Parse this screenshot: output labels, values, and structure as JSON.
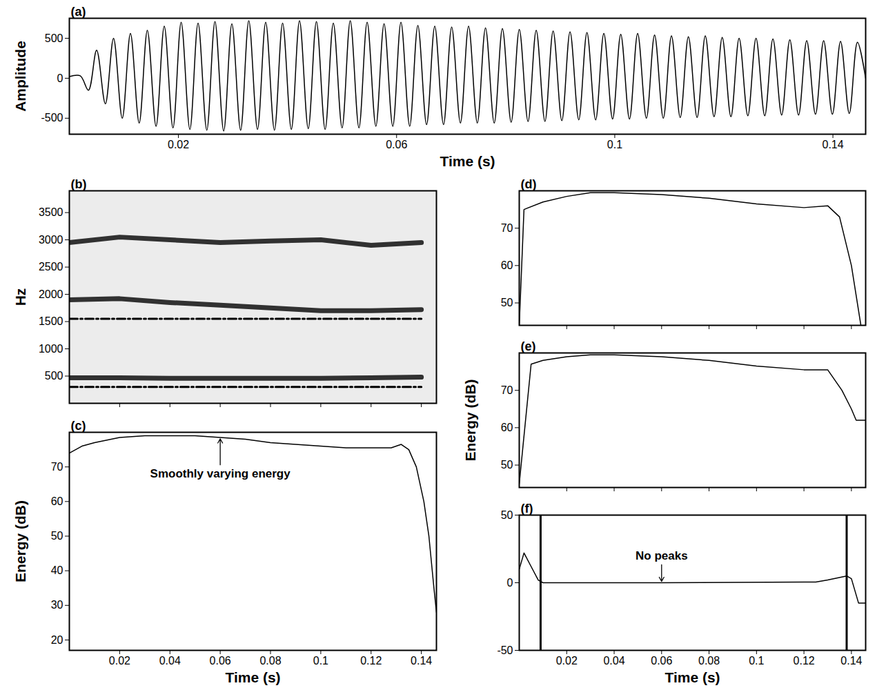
{
  "chart_data": [
    {
      "type": "line",
      "title": "(a)",
      "x_label": "Time (s)",
      "y_label": "Amplitude",
      "x": [
        0,
        0.002,
        0.0035,
        0.005,
        0.0066,
        0.0081,
        0.0097,
        0.0112,
        0.0128,
        0.0143,
        0.0159,
        0.0174,
        0.019,
        0.0205,
        0.0221,
        0.0236,
        0.0252,
        0.0267,
        0.0283,
        0.0298,
        0.0314,
        0.0329,
        0.0345,
        0.036,
        0.0376,
        0.0391,
        0.0407,
        0.0422,
        0.0438,
        0.0453,
        0.0469,
        0.0484,
        0.05,
        0.0515,
        0.0531,
        0.0546,
        0.0562,
        0.0577,
        0.0593,
        0.0608,
        0.0624,
        0.0639,
        0.0655,
        0.067,
        0.0686,
        0.0701,
        0.0717,
        0.0732,
        0.0748,
        0.0763,
        0.0779,
        0.0794,
        0.081,
        0.0825,
        0.0841,
        0.0856,
        0.0872,
        0.0887,
        0.0903,
        0.0918,
        0.0934,
        0.0949,
        0.0965,
        0.098,
        0.0996,
        0.1011,
        0.1027,
        0.1042,
        0.1058,
        0.1073,
        0.1089,
        0.1104,
        0.112,
        0.1135,
        0.1151,
        0.1166,
        0.1182,
        0.1197,
        0.1213,
        0.1228,
        0.1244,
        0.1259,
        0.1275,
        0.129,
        0.1306,
        0.1321,
        0.1337,
        0.1352,
        0.1368,
        0.1383,
        0.1399,
        0.1414,
        0.143,
        0.1445,
        0.146
      ],
      "series": [
        {
          "color": "#000000",
          "line_style": "solid",
          "values": [
            20,
            30,
            -150,
            350,
            -320,
            500,
            -500,
            560,
            -560,
            600,
            -600,
            650,
            -620,
            700,
            -640,
            690,
            -650,
            710,
            -660,
            680,
            -650,
            720,
            -640,
            700,
            -650,
            690,
            -640,
            720,
            -630,
            710,
            -640,
            690,
            -620,
            720,
            -620,
            700,
            -600,
            680,
            -600,
            700,
            -600,
            660,
            -580,
            650,
            -580,
            640,
            -560,
            650,
            -560,
            630,
            -560,
            620,
            -550,
            610,
            -540,
            600,
            -540,
            590,
            -530,
            580,
            -520,
            570,
            -520,
            560,
            -510,
            550,
            -510,
            560,
            -500,
            540,
            -500,
            530,
            -490,
            520,
            -490,
            530,
            -480,
            510,
            -480,
            500,
            -470,
            500,
            -470,
            490,
            -460,
            480,
            -460,
            470,
            -450,
            470,
            -450,
            460,
            -440,
            450,
            0
          ]
        }
      ],
      "xlim": [
        0,
        0.146
      ],
      "ylim": [
        -700,
        750
      ],
      "xticks": [
        0.02,
        0.06,
        0.1,
        0.14
      ],
      "yticks": [
        -500,
        0,
        500
      ]
    },
    {
      "type": "spectrogram",
      "title": "(b)",
      "y_label": "Hz",
      "x": [
        0,
        0.02,
        0.04,
        0.06,
        0.08,
        0.1,
        0.12,
        0.14
      ],
      "series": [
        {
          "color": "#111111",
          "line_style": "solid",
          "values": [
            470,
            470,
            460,
            460,
            460,
            460,
            470,
            480
          ]
        },
        {
          "color": "#111111",
          "line_style": "solid",
          "values": [
            1900,
            1920,
            1850,
            1800,
            1750,
            1700,
            1700,
            1720
          ]
        },
        {
          "color": "#111111",
          "line_style": "solid",
          "values": [
            2950,
            3050,
            3000,
            2950,
            2980,
            3000,
            2900,
            2950
          ]
        },
        {
          "color": "#000000",
          "line_style": "dashdot",
          "values": [
            300,
            300,
            300,
            300,
            300,
            300,
            300,
            300
          ]
        },
        {
          "color": "#000000",
          "line_style": "dashdot",
          "values": [
            1550,
            1550,
            1550,
            1550,
            1550,
            1550,
            1550,
            1550
          ]
        }
      ],
      "xlim": [
        0,
        0.146
      ],
      "ylim": [
        0,
        3900
      ],
      "xticks": [
        0.02,
        0.04,
        0.06,
        0.08,
        0.1,
        0.12,
        0.14
      ],
      "yticks": [
        500,
        1000,
        1500,
        2000,
        2500,
        3000,
        3500
      ],
      "tick_labels": "y"
    },
    {
      "type": "line",
      "title": "(c)",
      "x_label": "Time (s)",
      "y_label": "Energy (dB)",
      "x": [
        0,
        0.005,
        0.01,
        0.02,
        0.03,
        0.04,
        0.05,
        0.06,
        0.07,
        0.08,
        0.09,
        0.1,
        0.11,
        0.12,
        0.128,
        0.132,
        0.135,
        0.138,
        0.141,
        0.143,
        0.145,
        0.146
      ],
      "series": [
        {
          "color": "#000000",
          "line_style": "solid",
          "values": [
            74,
            76,
            77,
            78.5,
            79,
            79,
            79,
            78.5,
            78,
            77,
            76.5,
            76,
            75.5,
            75.5,
            75.5,
            76.5,
            75,
            70,
            60,
            50,
            35,
            28
          ]
        }
      ],
      "annotations": [
        {
          "text": "Smoothly varying energy",
          "x": 0.06,
          "y": 68
        }
      ],
      "xlim": [
        0,
        0.146
      ],
      "ylim": [
        17,
        80
      ],
      "xticks": [
        0.02,
        0.04,
        0.06,
        0.08,
        0.1,
        0.12,
        0.14
      ],
      "yticks": [
        20,
        30,
        40,
        50,
        60,
        70
      ]
    },
    {
      "type": "line",
      "title": "(d)",
      "x": [
        0,
        0.002,
        0.01,
        0.02,
        0.03,
        0.04,
        0.06,
        0.08,
        0.1,
        0.12,
        0.13,
        0.135,
        0.14,
        0.144
      ],
      "series": [
        {
          "color": "#000000",
          "line_style": "solid",
          "values": [
            44,
            75,
            77,
            78.5,
            79.5,
            79.5,
            79,
            78,
            76.5,
            75.5,
            76,
            73,
            60,
            44
          ]
        }
      ],
      "xlim": [
        0,
        0.146
      ],
      "ylim": [
        44,
        80
      ],
      "xticks": [
        0.02,
        0.04,
        0.06,
        0.08,
        0.1,
        0.12,
        0.14
      ],
      "yticks": [
        50,
        60,
        70
      ],
      "tick_labels": "y"
    },
    {
      "type": "line",
      "title": "(e)",
      "y_label": "Energy (dB)",
      "x": [
        0,
        0.005,
        0.01,
        0.02,
        0.03,
        0.04,
        0.06,
        0.08,
        0.1,
        0.12,
        0.13,
        0.136,
        0.14,
        0.142,
        0.146
      ],
      "series": [
        {
          "color": "#000000",
          "line_style": "solid",
          "values": [
            45,
            77,
            78,
            79,
            79.5,
            79.5,
            79,
            78,
            76.5,
            75.5,
            75.5,
            70,
            65,
            62,
            62
          ]
        }
      ],
      "xlim": [
        0,
        0.146
      ],
      "ylim": [
        44,
        80
      ],
      "xticks": [
        0.02,
        0.04,
        0.06,
        0.08,
        0.1,
        0.12,
        0.14
      ],
      "yticks": [
        50,
        60,
        70
      ],
      "tick_labels": "y"
    },
    {
      "type": "line",
      "title": "(f)",
      "x_label": "Time (s)",
      "x": [
        0,
        0.002,
        0.005,
        0.008,
        0.01,
        0.06,
        0.12,
        0.125,
        0.13,
        0.138,
        0.14,
        0.143,
        0.146
      ],
      "series": [
        {
          "color": "#000000",
          "line_style": "solid",
          "values": [
            10,
            22,
            12,
            2,
            0,
            0,
            0.5,
            0.5,
            2,
            5,
            3,
            -15,
            -15
          ]
        }
      ],
      "vlines": [
        0.009,
        0.138
      ],
      "annotations": [
        {
          "text": "No peaks",
          "x": 0.06,
          "y": 20
        }
      ],
      "xlim": [
        0,
        0.146
      ],
      "ylim": [
        -50,
        50
      ],
      "xticks": [
        0.02,
        0.04,
        0.06,
        0.08,
        0.1,
        0.12,
        0.14
      ],
      "yticks": [
        -50,
        0,
        50
      ]
    }
  ]
}
